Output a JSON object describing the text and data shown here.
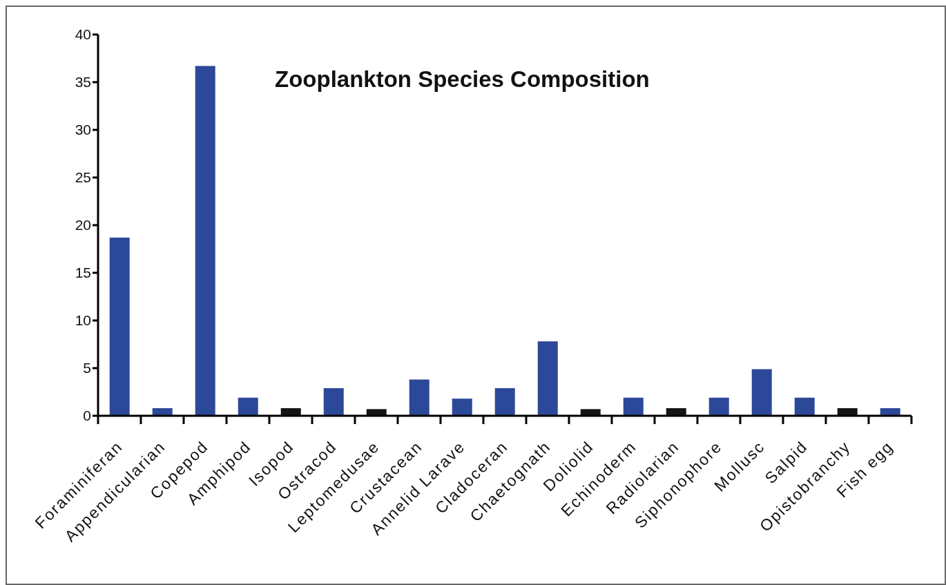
{
  "chart_data": {
    "type": "bar",
    "title": "Zooplankton Species Composition",
    "categories": [
      "Foraminiferan",
      "Appendicularian",
      "Copepod",
      "Amphipod",
      "Isopod",
      "Ostracod",
      "Leptomedusae",
      "Crustacean",
      "Annelid Larave",
      "Cladoceran",
      "Chaetognath",
      "Doliolid",
      "Echinoderm",
      "Radiolarian",
      "Siphonophore",
      "Mollusc",
      "Salpid",
      "Opistobranchy",
      "Fish egg"
    ],
    "values": [
      18.7,
      0.8,
      36.7,
      1.9,
      0.8,
      2.9,
      0.7,
      3.8,
      1.8,
      2.9,
      7.8,
      0.7,
      1.9,
      0.8,
      1.9,
      4.9,
      1.9,
      0.8,
      0.8
    ],
    "colors": [
      "#2c4898",
      "#2c4898",
      "#2c4898",
      "#2c4898",
      "#141414",
      "#2c4898",
      "#141414",
      "#2c4898",
      "#2c4898",
      "#2c4898",
      "#2c4898",
      "#141414",
      "#2c4898",
      "#141414",
      "#2c4898",
      "#2c4898",
      "#2c4898",
      "#141414",
      "#2c4898"
    ],
    "ylim": [
      0,
      40
    ],
    "yticks": [
      0,
      5,
      10,
      15,
      20,
      25,
      30,
      35,
      40
    ]
  }
}
